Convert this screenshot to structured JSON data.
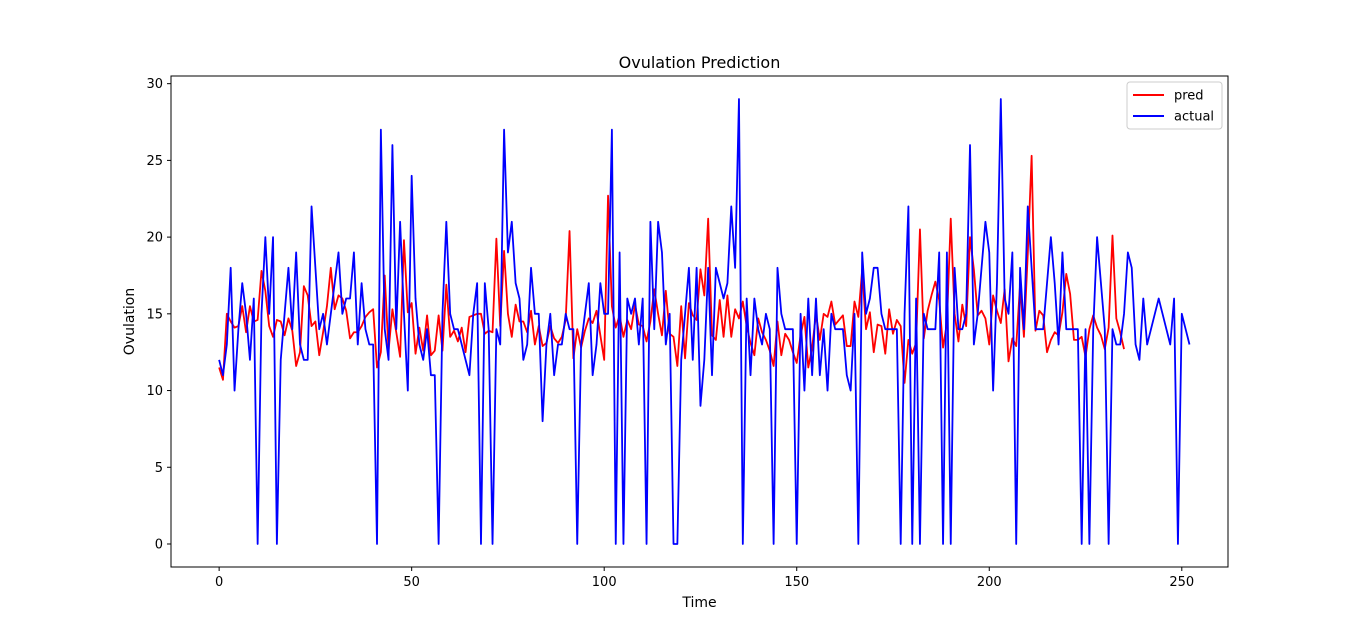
{
  "chart_data": {
    "type": "line",
    "title": "Ovulation Prediction",
    "xlabel": "Time",
    "ylabel": "Ovulation",
    "xlim": [
      -12.5,
      262
    ],
    "ylim": [
      -1.5,
      30.5
    ],
    "xticks": [
      0,
      50,
      100,
      150,
      200,
      250
    ],
    "yticks": [
      0,
      5,
      10,
      15,
      20,
      25,
      30
    ],
    "grid": false,
    "legend_position": "top-right",
    "series": [
      {
        "name": "pred",
        "color": "#ff0000",
        "values": [
          11.5,
          10.7,
          15.0,
          14.5,
          14.1,
          14.2,
          15.5,
          13.8,
          15.5,
          14.5,
          14.6,
          17.8,
          16.5,
          14.2,
          13.5,
          14.6,
          14.5,
          13.6,
          14.7,
          13.9,
          11.6,
          12.5,
          16.8,
          16.2,
          14.2,
          14.5,
          12.3,
          13.8,
          15.5,
          18.0,
          15.3,
          16.2,
          16.0,
          15.2,
          13.4,
          13.8,
          13.8,
          14.2,
          14.8,
          15.1,
          15.3,
          11.5,
          12.5,
          17.5,
          12.6,
          15.3,
          13.8,
          12.2,
          19.8,
          15.1,
          15.7,
          12.4,
          14.1,
          12.6,
          14.9,
          12.3,
          12.6,
          14.9,
          12.6,
          16.9,
          13.5,
          13.9,
          13.2,
          14.1,
          12.5,
          14.8,
          14.9,
          15.0,
          15.0,
          13.7,
          13.9,
          13.8,
          19.9,
          14.2,
          19.1,
          15.0,
          13.5,
          15.6,
          14.5,
          14.5,
          13.8,
          15.2,
          13.0,
          14.2,
          12.9,
          13.1,
          14.2,
          13.4,
          13.1,
          13.5,
          14.6,
          20.4,
          12.1,
          14.0,
          12.8,
          13.9,
          14.7,
          14.4,
          15.2,
          13.6,
          12.0,
          22.7,
          15.5,
          14.1,
          14.9,
          13.5,
          14.6,
          14.0,
          15.6,
          14.3,
          14.2,
          13.2,
          14.5,
          16.6,
          15.0,
          13.6,
          16.5,
          13.7,
          13.5,
          11.6,
          15.5,
          12.1,
          15.7,
          14.9,
          14.6,
          17.9,
          16.2,
          21.2,
          13.6,
          13.3,
          15.9,
          13.5,
          16.2,
          13.5,
          15.3,
          14.7,
          15.8,
          14.2,
          13.1,
          12.3,
          14.7,
          13.8,
          13.3,
          12.6,
          11.6,
          14.5,
          12.3,
          13.7,
          13.3,
          12.5,
          11.8,
          13.6,
          14.8,
          11.5,
          12.8,
          15.0,
          13.3,
          15.0,
          14.8,
          15.8,
          14.3,
          14.6,
          14.9,
          12.9,
          12.9,
          15.8,
          14.8,
          17.9,
          14.0,
          15.1,
          12.5,
          14.3,
          14.2,
          12.4,
          15.3,
          13.7,
          14.6,
          14.2,
          10.5,
          13.3,
          12.4,
          13.1,
          20.5,
          13.4,
          15.2,
          16.2,
          17.1,
          15.9,
          12.8,
          14.4,
          21.2,
          15.0,
          13.2,
          15.6,
          14.2,
          20.0,
          17.9,
          14.9,
          15.2,
          14.7,
          13.0,
          16.2,
          15.2,
          14.4,
          16.6,
          11.9,
          13.4,
          12.9,
          16.9,
          13.5,
          18.9,
          25.3,
          13.9,
          15.2,
          14.9,
          12.5,
          13.3,
          13.8,
          13.6,
          15.1,
          17.6,
          16.3,
          13.3,
          13.3,
          13.5,
          12.2,
          14.0,
          14.9,
          14.1,
          13.6,
          12.7,
          14.1,
          20.1,
          14.7,
          13.8,
          12.7
        ]
      },
      {
        "name": "actual",
        "color": "#0000ff",
        "values": [
          12,
          11,
          13,
          18,
          10,
          14,
          17,
          15,
          12,
          16,
          0,
          15,
          20,
          15,
          20,
          0,
          12,
          15,
          18,
          14,
          19,
          13,
          12,
          12,
          22,
          18,
          14,
          15,
          13,
          15,
          17,
          19,
          15,
          16,
          16,
          19,
          13,
          17,
          14,
          13,
          13,
          0,
          27,
          14,
          12,
          26,
          14,
          21,
          15,
          10,
          24,
          16,
          13,
          12,
          14,
          11,
          11,
          0,
          15,
          21,
          15,
          14,
          14,
          13,
          12,
          11,
          15,
          17,
          0,
          17,
          14,
          0,
          14,
          13,
          27,
          19,
          21,
          17,
          16,
          12,
          13,
          18,
          15,
          15,
          8,
          13,
          15,
          11,
          13,
          13,
          15,
          14,
          14,
          0,
          13,
          15,
          17,
          11,
          13,
          17,
          15,
          15,
          27,
          0,
          19,
          0,
          16,
          15,
          16,
          13,
          16,
          0,
          21,
          14,
          21,
          19,
          13,
          15,
          0,
          0,
          12,
          15,
          18,
          12,
          18,
          9,
          12,
          18,
          11,
          18,
          17,
          16,
          17,
          22,
          18,
          29,
          0,
          16,
          11,
          16,
          14,
          13,
          15,
          14,
          0,
          18,
          15,
          14,
          14,
          14,
          0,
          15,
          10,
          16,
          11,
          16,
          11,
          14,
          10,
          15,
          14,
          14,
          14,
          11,
          10,
          15,
          0,
          19,
          15,
          16,
          18,
          18,
          15,
          14,
          14,
          14,
          14,
          0,
          15,
          22,
          0,
          16,
          0,
          15,
          14,
          14,
          14,
          19,
          0,
          19,
          0,
          18,
          14,
          14,
          15,
          26,
          13,
          15,
          18,
          21,
          19,
          10,
          17,
          29,
          16,
          15,
          19,
          0,
          18,
          14,
          22,
          18,
          14,
          14,
          14,
          17,
          20,
          17,
          13,
          19,
          14,
          14,
          14,
          14,
          0,
          14,
          0,
          14,
          20,
          17,
          14,
          0,
          14,
          13,
          13,
          15,
          19,
          18,
          13,
          12,
          16,
          13,
          14,
          15,
          16,
          15,
          14,
          13,
          16,
          0,
          15,
          14,
          13
        ]
      }
    ]
  }
}
